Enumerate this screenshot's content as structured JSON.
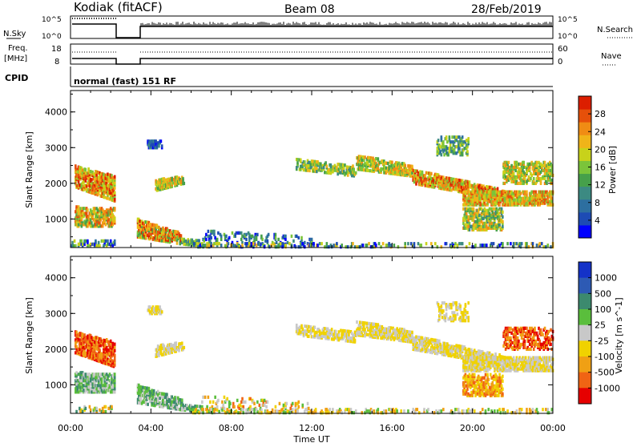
{
  "header": {
    "radar": "Kodiak (fitACF)",
    "beam": "Beam 08",
    "date": "28/Feb/2019"
  },
  "status_panels": {
    "nsky": {
      "label": "N.Sky",
      "ticks": [
        "10^5",
        "10^0"
      ]
    },
    "nsearch": {
      "label": "N.Search",
      "ticks": [
        "10^5",
        "10^0"
      ]
    },
    "freq": {
      "label_line1": "Freq.",
      "label_line2": "[MHz]",
      "ticks": [
        "18",
        "8"
      ]
    },
    "nave": {
      "label": "Nave",
      "ticks": [
        "60",
        "0"
      ]
    },
    "cpid": {
      "label": "CPID",
      "value": "normal (fast) 151 RF"
    }
  },
  "chart_data": [
    {
      "type": "heatmap",
      "title": "",
      "ylabel": "Slant Range [km]",
      "xlabel": "",
      "yticks": [
        "1000",
        "2000",
        "3000",
        "4000"
      ],
      "ylim": [
        200,
        4600
      ],
      "xlim": [
        0,
        24
      ],
      "colorbar": {
        "label": "Power [dB]",
        "ticks": [
          "4",
          "8",
          "12",
          "16",
          "20",
          "24",
          "28"
        ],
        "colors": [
          "#0000ff",
          "#1d4bb4",
          "#2d6fa0",
          "#3c8a82",
          "#46a04a",
          "#7bc43a",
          "#c8d21a",
          "#f0b419",
          "#f08c14",
          "#e6500a",
          "#dc1e00"
        ]
      }
    },
    {
      "type": "heatmap",
      "title": "",
      "ylabel": "Slant Range [km]",
      "xlabel": "Time UT",
      "yticks": [
        "1000",
        "2000",
        "3000",
        "4000"
      ],
      "xticks": [
        "00:00",
        "04:00",
        "08:00",
        "12:00",
        "16:00",
        "20:00",
        "00:00"
      ],
      "ylim": [
        200,
        4600
      ],
      "xlim": [
        0,
        24
      ],
      "colorbar": {
        "label": "Velocity [m s^-1]",
        "ticks": [
          "1000",
          "500",
          "100",
          "25",
          "-25",
          "-100",
          "-500",
          "-1000"
        ],
        "colors": [
          "#1432c8",
          "#2d5ab4",
          "#3c8a6e",
          "#5abe3c",
          "#c8c8c8",
          "#f0d200",
          "#f0a014",
          "#f06414",
          "#e60000"
        ]
      }
    }
  ]
}
